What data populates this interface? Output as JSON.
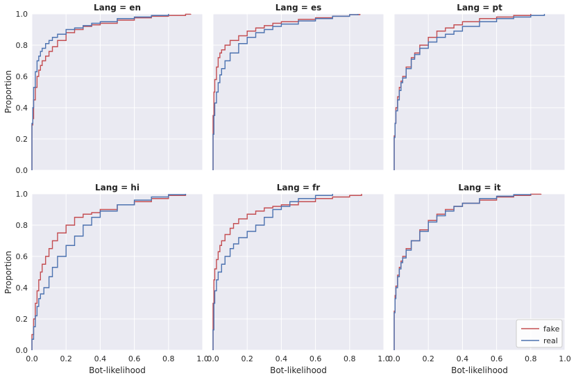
{
  "chart_data": {
    "type": "line",
    "xlabel": "Bot-likelihood",
    "ylabel": "Proportion",
    "xlim": [
      0,
      1.0
    ],
    "ylim": [
      0,
      1.0
    ],
    "xticks": [
      "0.0",
      "0.2",
      "0.4",
      "0.6",
      "0.8",
      "1.0"
    ],
    "yticks": [
      "0.0",
      "0.2",
      "0.4",
      "0.6",
      "0.8",
      "1.0"
    ],
    "grid": true,
    "legend": {
      "location": "lower-right",
      "entries": [
        {
          "name": "fake",
          "color": "#c44e52"
        },
        {
          "name": "real",
          "color": "#4c72b0"
        }
      ]
    },
    "panels": [
      {
        "title": "Lang = en",
        "series": [
          {
            "name": "fake",
            "color": "#c44e52",
            "x": [
              0.0,
              0.005,
              0.01,
              0.02,
              0.03,
              0.04,
              0.05,
              0.06,
              0.08,
              0.1,
              0.12,
              0.15,
              0.2,
              0.25,
              0.3,
              0.35,
              0.4,
              0.5,
              0.6,
              0.7,
              0.8,
              0.9,
              0.93
            ],
            "y": [
              0.29,
              0.33,
              0.45,
              0.53,
              0.6,
              0.64,
              0.67,
              0.7,
              0.73,
              0.76,
              0.79,
              0.83,
              0.88,
              0.9,
              0.92,
              0.93,
              0.94,
              0.96,
              0.975,
              0.985,
              0.99,
              0.998,
              1.0
            ]
          },
          {
            "name": "real",
            "color": "#4c72b0",
            "x": [
              0.0,
              0.005,
              0.01,
              0.02,
              0.03,
              0.04,
              0.05,
              0.06,
              0.08,
              0.1,
              0.12,
              0.15,
              0.2,
              0.25,
              0.3,
              0.35,
              0.4,
              0.5,
              0.6,
              0.7,
              0.8
            ],
            "y": [
              0.3,
              0.4,
              0.53,
              0.63,
              0.7,
              0.73,
              0.76,
              0.78,
              0.81,
              0.83,
              0.85,
              0.87,
              0.9,
              0.91,
              0.925,
              0.94,
              0.95,
              0.97,
              0.98,
              0.99,
              1.0
            ]
          }
        ]
      },
      {
        "title": "Lang = es",
        "series": [
          {
            "name": "fake",
            "color": "#c44e52",
            "x": [
              0.0,
              0.005,
              0.01,
              0.02,
              0.03,
              0.04,
              0.05,
              0.07,
              0.1,
              0.15,
              0.2,
              0.25,
              0.3,
              0.35,
              0.4,
              0.5,
              0.6,
              0.7,
              0.8,
              0.86
            ],
            "y": [
              0.35,
              0.5,
              0.58,
              0.66,
              0.72,
              0.75,
              0.77,
              0.8,
              0.83,
              0.86,
              0.89,
              0.91,
              0.925,
              0.94,
              0.95,
              0.965,
              0.975,
              0.985,
              0.995,
              1.0
            ]
          },
          {
            "name": "real",
            "color": "#4c72b0",
            "x": [
              0.0,
              0.005,
              0.01,
              0.02,
              0.03,
              0.04,
              0.05,
              0.07,
              0.1,
              0.15,
              0.2,
              0.25,
              0.3,
              0.35,
              0.4,
              0.5,
              0.6,
              0.7,
              0.8,
              0.85
            ],
            "y": [
              0.23,
              0.35,
              0.43,
              0.5,
              0.56,
              0.61,
              0.65,
              0.7,
              0.75,
              0.81,
              0.85,
              0.88,
              0.9,
              0.92,
              0.935,
              0.955,
              0.97,
              0.985,
              0.995,
              1.0
            ]
          }
        ]
      },
      {
        "title": "Lang = pt",
        "series": [
          {
            "name": "fake",
            "color": "#c44e52",
            "x": [
              0.0,
              0.005,
              0.01,
              0.02,
              0.03,
              0.04,
              0.05,
              0.07,
              0.1,
              0.12,
              0.15,
              0.2,
              0.25,
              0.3,
              0.35,
              0.4,
              0.5,
              0.6,
              0.7,
              0.8
            ],
            "y": [
              0.22,
              0.3,
              0.4,
              0.47,
              0.53,
              0.57,
              0.6,
              0.66,
              0.72,
              0.75,
              0.8,
              0.85,
              0.89,
              0.91,
              0.93,
              0.95,
              0.97,
              0.98,
              0.99,
              1.0
            ]
          },
          {
            "name": "real",
            "color": "#4c72b0",
            "x": [
              0.0,
              0.005,
              0.01,
              0.02,
              0.03,
              0.04,
              0.05,
              0.07,
              0.1,
              0.12,
              0.15,
              0.2,
              0.25,
              0.3,
              0.35,
              0.4,
              0.5,
              0.6,
              0.7,
              0.8,
              0.88
            ],
            "y": [
              0.21,
              0.3,
              0.38,
              0.45,
              0.51,
              0.56,
              0.59,
              0.65,
              0.71,
              0.74,
              0.78,
              0.82,
              0.85,
              0.87,
              0.89,
              0.92,
              0.95,
              0.97,
              0.98,
              0.99,
              1.0
            ]
          }
        ]
      },
      {
        "title": "Lang = hi",
        "series": [
          {
            "name": "fake",
            "color": "#c44e52",
            "x": [
              0.0,
              0.01,
              0.02,
              0.03,
              0.04,
              0.05,
              0.06,
              0.08,
              0.1,
              0.12,
              0.15,
              0.2,
              0.25,
              0.3,
              0.35,
              0.4,
              0.5,
              0.6,
              0.7,
              0.8,
              0.9
            ],
            "y": [
              0.1,
              0.2,
              0.3,
              0.38,
              0.45,
              0.5,
              0.55,
              0.6,
              0.65,
              0.7,
              0.75,
              0.8,
              0.85,
              0.87,
              0.88,
              0.9,
              0.93,
              0.95,
              0.97,
              0.99,
              1.0
            ]
          },
          {
            "name": "real",
            "color": "#4c72b0",
            "x": [
              0.0,
              0.01,
              0.02,
              0.03,
              0.04,
              0.05,
              0.07,
              0.1,
              0.12,
              0.15,
              0.2,
              0.25,
              0.3,
              0.35,
              0.4,
              0.5,
              0.6,
              0.7,
              0.8,
              0.9
            ],
            "y": [
              0.07,
              0.15,
              0.22,
              0.28,
              0.33,
              0.36,
              0.4,
              0.47,
              0.53,
              0.6,
              0.67,
              0.73,
              0.8,
              0.85,
              0.89,
              0.93,
              0.96,
              0.98,
              0.995,
              1.0
            ]
          }
        ]
      },
      {
        "title": "Lang = fr",
        "series": [
          {
            "name": "fake",
            "color": "#c44e52",
            "x": [
              0.0,
              0.005,
              0.01,
              0.02,
              0.03,
              0.04,
              0.05,
              0.07,
              0.1,
              0.12,
              0.15,
              0.2,
              0.25,
              0.3,
              0.35,
              0.4,
              0.5,
              0.6,
              0.7,
              0.8,
              0.87
            ],
            "y": [
              0.3,
              0.45,
              0.52,
              0.58,
              0.63,
              0.67,
              0.7,
              0.74,
              0.78,
              0.81,
              0.84,
              0.87,
              0.89,
              0.91,
              0.92,
              0.93,
              0.95,
              0.97,
              0.98,
              0.99,
              1.0
            ]
          },
          {
            "name": "real",
            "color": "#4c72b0",
            "x": [
              0.0,
              0.005,
              0.01,
              0.02,
              0.03,
              0.05,
              0.07,
              0.1,
              0.12,
              0.15,
              0.2,
              0.25,
              0.3,
              0.35,
              0.4,
              0.45,
              0.5,
              0.6,
              0.7
            ],
            "y": [
              0.13,
              0.3,
              0.38,
              0.45,
              0.5,
              0.55,
              0.6,
              0.65,
              0.68,
              0.72,
              0.76,
              0.8,
              0.85,
              0.9,
              0.92,
              0.95,
              0.97,
              0.99,
              1.0
            ]
          }
        ]
      },
      {
        "title": "Lang = it",
        "series": [
          {
            "name": "fake",
            "color": "#c44e52",
            "x": [
              0.0,
              0.005,
              0.01,
              0.02,
              0.03,
              0.04,
              0.05,
              0.07,
              0.1,
              0.15,
              0.2,
              0.25,
              0.3,
              0.35,
              0.4,
              0.5,
              0.6,
              0.7,
              0.8,
              0.86
            ],
            "y": [
              0.25,
              0.35,
              0.41,
              0.48,
              0.53,
              0.57,
              0.6,
              0.65,
              0.7,
              0.77,
              0.83,
              0.87,
              0.9,
              0.92,
              0.94,
              0.96,
              0.98,
              0.99,
              0.998,
              1.0
            ]
          },
          {
            "name": "real",
            "color": "#4c72b0",
            "x": [
              0.0,
              0.005,
              0.01,
              0.02,
              0.03,
              0.04,
              0.05,
              0.07,
              0.1,
              0.15,
              0.2,
              0.25,
              0.3,
              0.35,
              0.4,
              0.5,
              0.6,
              0.7,
              0.8
            ],
            "y": [
              0.24,
              0.33,
              0.4,
              0.47,
              0.52,
              0.56,
              0.59,
              0.64,
              0.7,
              0.76,
              0.82,
              0.86,
              0.89,
              0.92,
              0.94,
              0.97,
              0.985,
              0.995,
              1.0
            ]
          }
        ]
      }
    ]
  }
}
